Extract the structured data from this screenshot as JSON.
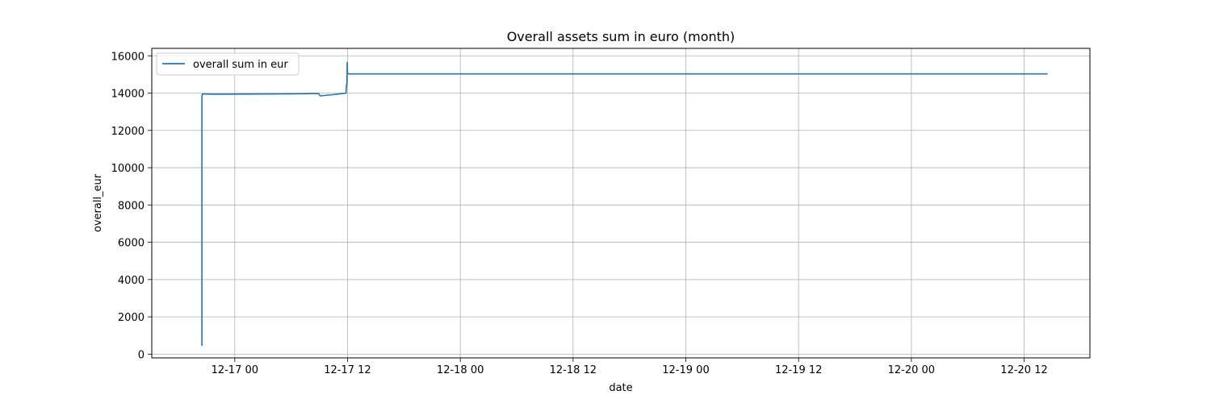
{
  "chart_data": {
    "type": "line",
    "title": "Overall assets sum in euro (month)",
    "xlabel": "date",
    "ylabel": "overall_eur",
    "xlim": [
      "2021-12-16 15:10",
      "2021-12-20 19:00"
    ],
    "ylim": [
      -200,
      16400
    ],
    "grid": true,
    "legend_position": "top-left",
    "x_ticks": [
      {
        "value": "2021-12-17 00:00",
        "label": "12-17 00"
      },
      {
        "value": "2021-12-17 12:00",
        "label": "12-17 12"
      },
      {
        "value": "2021-12-18 00:00",
        "label": "12-18 00"
      },
      {
        "value": "2021-12-18 12:00",
        "label": "12-18 12"
      },
      {
        "value": "2021-12-19 00:00",
        "label": "12-19 00"
      },
      {
        "value": "2021-12-19 12:00",
        "label": "12-19 12"
      },
      {
        "value": "2021-12-20 00:00",
        "label": "12-20 00"
      },
      {
        "value": "2021-12-20 12:00",
        "label": "12-20 12"
      }
    ],
    "y_ticks": [
      0,
      2000,
      4000,
      6000,
      8000,
      10000,
      12000,
      14000,
      16000
    ],
    "series": [
      {
        "name": "overall sum in eur",
        "color": "#1f77b4",
        "points": [
          [
            "2021-12-16 20:30",
            450
          ],
          [
            "2021-12-16 20:30",
            13800
          ],
          [
            "2021-12-16 20:33",
            13950
          ],
          [
            "2021-12-16 22:00",
            13940
          ],
          [
            "2021-12-17 02:00",
            13950
          ],
          [
            "2021-12-17 06:00",
            13960
          ],
          [
            "2021-12-17 08:55",
            13980
          ],
          [
            "2021-12-17 09:05",
            13850
          ],
          [
            "2021-12-17 10:30",
            13920
          ],
          [
            "2021-12-17 11:50",
            14000
          ],
          [
            "2021-12-17 11:53",
            14450
          ],
          [
            "2021-12-17 11:56",
            14500
          ],
          [
            "2021-12-17 11:58",
            15650
          ],
          [
            "2021-12-17 12:00",
            15050
          ],
          [
            "2021-12-17 12:10",
            15030
          ],
          [
            "2021-12-18 12:00",
            15030
          ],
          [
            "2021-12-19 12:00",
            15030
          ],
          [
            "2021-12-20 14:30",
            15030
          ]
        ]
      }
    ]
  }
}
